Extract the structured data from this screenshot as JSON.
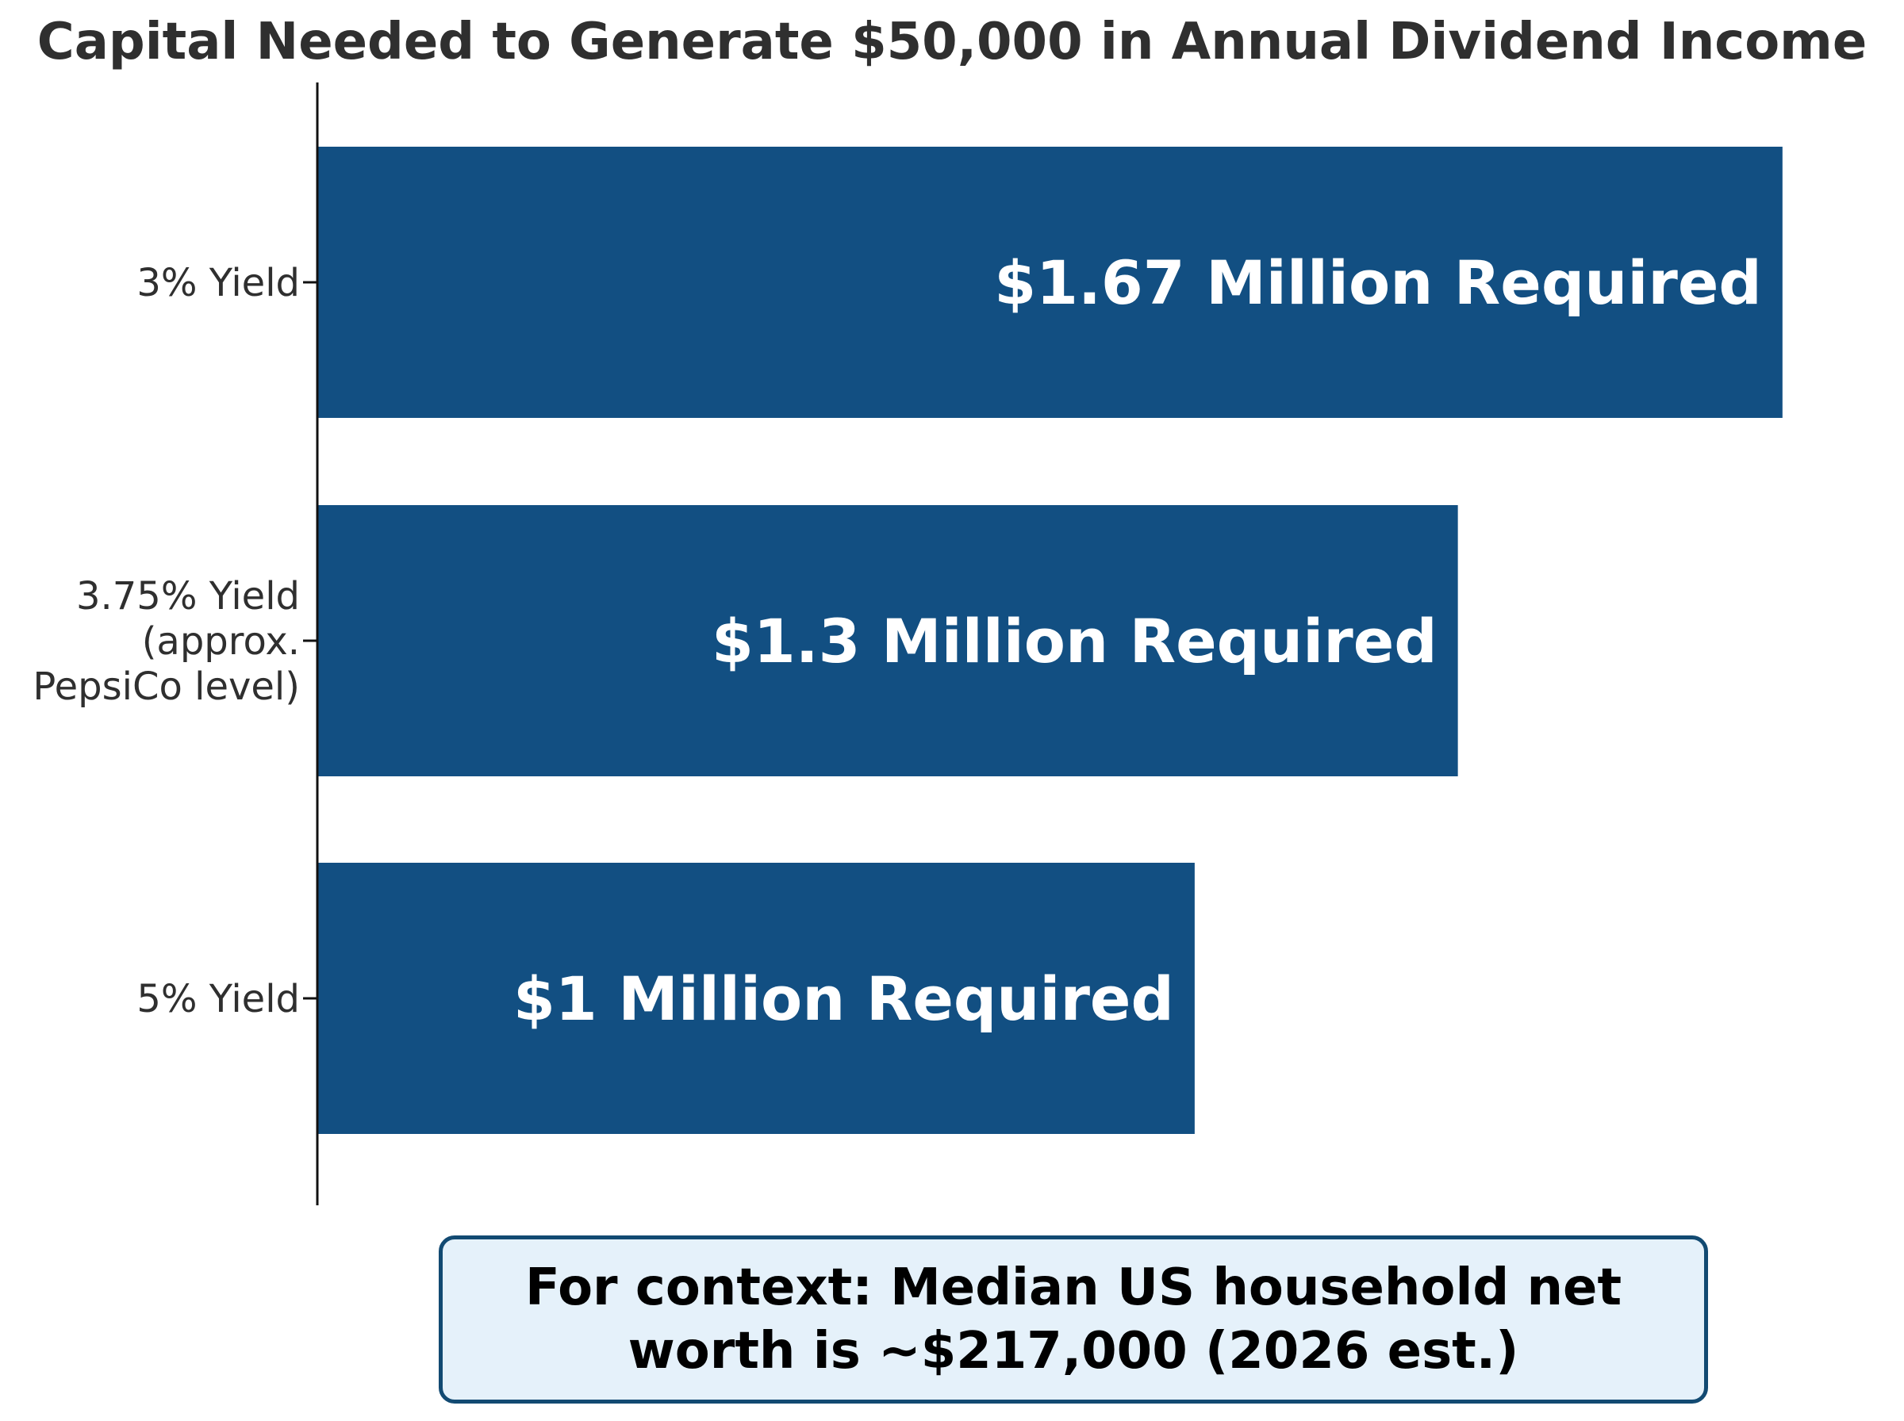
{
  "chart_data": {
    "type": "bar",
    "orientation": "horizontal",
    "title": "Capital Needed to Generate $50,000 in Annual Dividend Income",
    "xlabel": "",
    "ylabel": "",
    "categories": [
      [
        "3% Yield"
      ],
      [
        "3.75% Yield",
        "(approx.",
        "PepsiCo level)"
      ],
      [
        "5% Yield"
      ]
    ],
    "values": [
      1.67,
      1.3,
      1.0
    ],
    "value_unit": "Million",
    "bar_labels": [
      "$1.67 Million Required",
      "$1.3 Million Required",
      "$1 Million Required"
    ],
    "xlim": [
      0,
      1.7
    ],
    "grid": false,
    "legend": "none",
    "bar_color": "#124f82"
  },
  "annotation": {
    "text": "For context: Median US household net worth is ~$217,000 (2026 est.)",
    "background_color": "#e5f1fa",
    "border_color": "#124a72"
  }
}
